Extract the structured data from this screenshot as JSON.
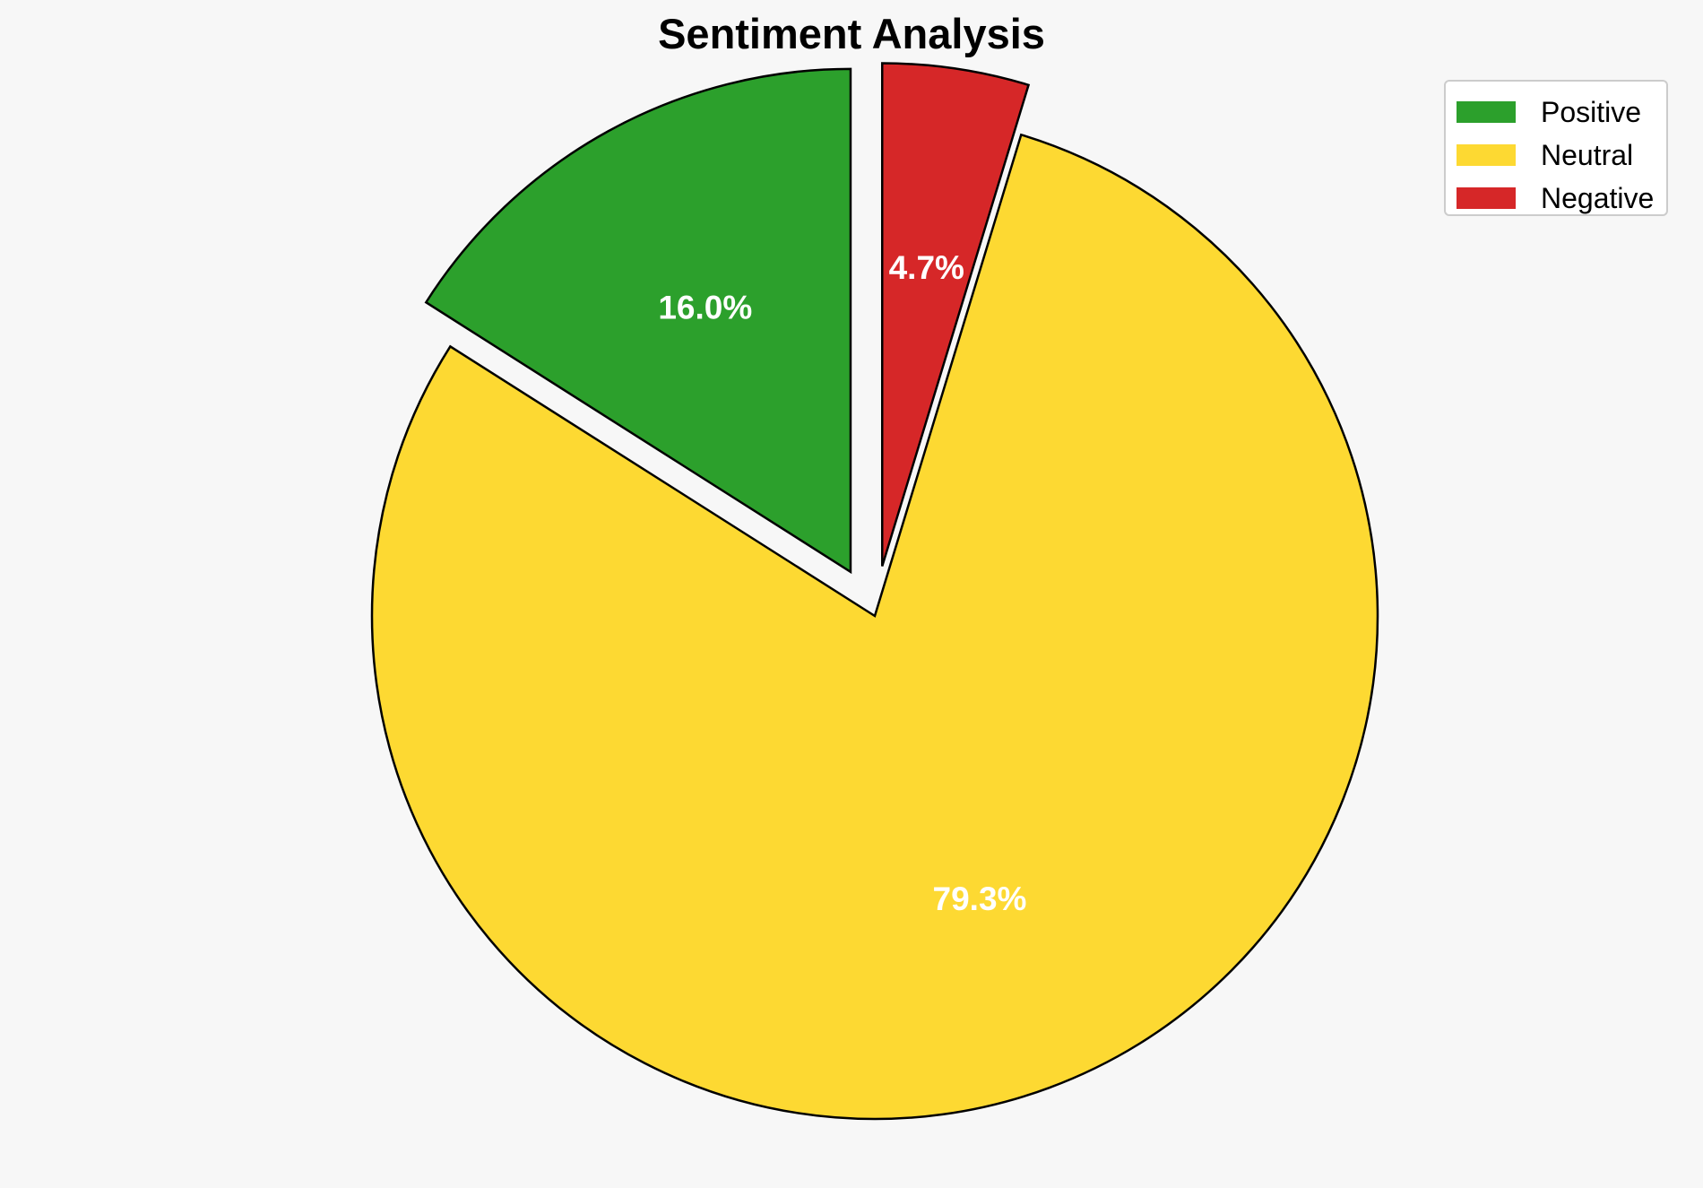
{
  "chart_data": {
    "type": "pie",
    "title": "Sentiment Analysis",
    "categories": [
      "Positive",
      "Neutral",
      "Negative"
    ],
    "values": [
      16.0,
      79.3,
      4.7
    ],
    "labels": [
      "16.0%",
      "79.3%",
      "4.7%"
    ],
    "colors": [
      "#2ca02c",
      "#fdd932",
      "#d62728"
    ],
    "exploded": [
      "Positive",
      "Negative"
    ],
    "legend_position": "top-right"
  }
}
